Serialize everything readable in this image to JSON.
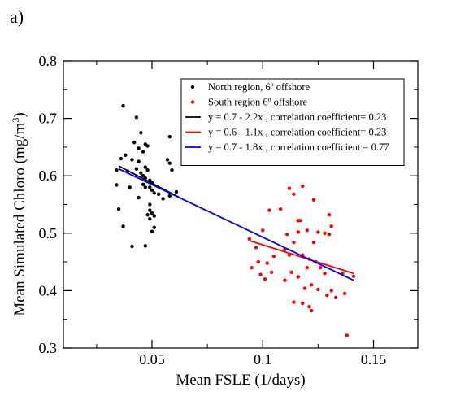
{
  "panel_label": "a)",
  "chart_data": {
    "type": "scatter",
    "title": "",
    "xlabel": "Mean FSLE (1/days)",
    "ylabel_main": "Mean Simulated Chloro (mg/m",
    "ylabel_sup": "3",
    "ylabel_close": ")",
    "xlim": [
      0.01,
      0.17
    ],
    "ylim": [
      0.3,
      0.8
    ],
    "x_ticks": [
      0.05,
      0.1,
      0.15
    ],
    "x_tick_labels": [
      "0.05",
      "0.1",
      "0.15"
    ],
    "y_ticks": [
      0.3,
      0.4,
      0.5,
      0.6,
      0.7,
      0.8
    ],
    "y_tick_labels": [
      "0.3",
      "0.4",
      "0.5",
      "0.6",
      "0.7",
      "0.8"
    ],
    "grid": false,
    "legend_position": "top-right",
    "series": [
      {
        "name": "North region, 6º offshore",
        "kind": "points",
        "color": "#000000",
        "points": [
          [
            0.037,
            0.722
          ],
          [
            0.043,
            0.702
          ],
          [
            0.045,
            0.675
          ],
          [
            0.047,
            0.655
          ],
          [
            0.044,
            0.648
          ],
          [
            0.046,
            0.642
          ],
          [
            0.042,
            0.658
          ],
          [
            0.048,
            0.652
          ],
          [
            0.038,
            0.636
          ],
          [
            0.036,
            0.63
          ],
          [
            0.041,
            0.628
          ],
          [
            0.044,
            0.625
          ],
          [
            0.039,
            0.608
          ],
          [
            0.034,
            0.61
          ],
          [
            0.043,
            0.612
          ],
          [
            0.045,
            0.605
          ],
          [
            0.046,
            0.6
          ],
          [
            0.047,
            0.615
          ],
          [
            0.048,
            0.61
          ],
          [
            0.047,
            0.596
          ],
          [
            0.049,
            0.592
          ],
          [
            0.046,
            0.585
          ],
          [
            0.05,
            0.588
          ],
          [
            0.05,
            0.575
          ],
          [
            0.034,
            0.584
          ],
          [
            0.04,
            0.58
          ],
          [
            0.047,
            0.58
          ],
          [
            0.051,
            0.57
          ],
          [
            0.053,
            0.568
          ],
          [
            0.044,
            0.562
          ],
          [
            0.049,
            0.55
          ],
          [
            0.055,
            0.56
          ],
          [
            0.049,
            0.54
          ],
          [
            0.05,
            0.535
          ],
          [
            0.051,
            0.53
          ],
          [
            0.048,
            0.532
          ],
          [
            0.049,
            0.525
          ],
          [
            0.051,
            0.51
          ],
          [
            0.05,
            0.503
          ],
          [
            0.035,
            0.542
          ],
          [
            0.037,
            0.512
          ],
          [
            0.041,
            0.477
          ],
          [
            0.047,
            0.478
          ],
          [
            0.057,
            0.628
          ],
          [
            0.058,
            0.622
          ],
          [
            0.059,
            0.61
          ],
          [
            0.061,
            0.572
          ],
          [
            0.058,
            0.565
          ],
          [
            0.058,
            0.668
          ],
          [
            0.049,
            0.58
          ]
        ]
      },
      {
        "name": "South region 6º offshore",
        "kind": "points",
        "color": "#ff0000",
        "points": [
          [
            0.118,
            0.582
          ],
          [
            0.112,
            0.578
          ],
          [
            0.123,
            0.558
          ],
          [
            0.114,
            0.568
          ],
          [
            0.108,
            0.542
          ],
          [
            0.13,
            0.532
          ],
          [
            0.103,
            0.54
          ],
          [
            0.116,
            0.522
          ],
          [
            0.131,
            0.512
          ],
          [
            0.117,
            0.522
          ],
          [
            0.12,
            0.505
          ],
          [
            0.125,
            0.502
          ],
          [
            0.128,
            0.5
          ],
          [
            0.13,
            0.498
          ],
          [
            0.111,
            0.498
          ],
          [
            0.116,
            0.502
          ],
          [
            0.1,
            0.505
          ],
          [
            0.114,
            0.484
          ],
          [
            0.123,
            0.484
          ],
          [
            0.094,
            0.49
          ],
          [
            0.11,
            0.472
          ],
          [
            0.112,
            0.462
          ],
          [
            0.097,
            0.475
          ],
          [
            0.105,
            0.46
          ],
          [
            0.118,
            0.462
          ],
          [
            0.121,
            0.455
          ],
          [
            0.124,
            0.45
          ],
          [
            0.126,
            0.44
          ],
          [
            0.12,
            0.44
          ],
          [
            0.128,
            0.43
          ],
          [
            0.113,
            0.432
          ],
          [
            0.102,
            0.448
          ],
          [
            0.098,
            0.45
          ],
          [
            0.095,
            0.44
          ],
          [
            0.099,
            0.428
          ],
          [
            0.104,
            0.432
          ],
          [
            0.101,
            0.42
          ],
          [
            0.11,
            0.418
          ],
          [
            0.116,
            0.424
          ],
          [
            0.122,
            0.41
          ],
          [
            0.119,
            0.404
          ],
          [
            0.125,
            0.402
          ],
          [
            0.131,
            0.4
          ],
          [
            0.129,
            0.392
          ],
          [
            0.133,
            0.388
          ],
          [
            0.137,
            0.395
          ],
          [
            0.114,
            0.38
          ],
          [
            0.118,
            0.378
          ],
          [
            0.121,
            0.372
          ],
          [
            0.122,
            0.365
          ],
          [
            0.138,
            0.322
          ],
          [
            0.136,
            0.43
          ],
          [
            0.141,
            0.425
          ]
        ]
      },
      {
        "name": "y = 0.7 - 2.2x ,  correlation coefficient= 0.23",
        "kind": "line",
        "color": "#000000",
        "x": [
          0.035,
          0.062
        ],
        "y": [
          0.617,
          0.563
        ]
      },
      {
        "name": "y = 0.6 - 1.1x , correlation coefficient= 0.23",
        "kind": "line",
        "color": "#ff0000",
        "x": [
          0.094,
          0.141
        ],
        "y": [
          0.487,
          0.43
        ]
      },
      {
        "name": "y = 0.7 - 1.8x , correlation coefficient = 0.77",
        "kind": "line",
        "color": "#0000ff",
        "x": [
          0.035,
          0.141
        ],
        "y": [
          0.612,
          0.418
        ]
      }
    ]
  }
}
